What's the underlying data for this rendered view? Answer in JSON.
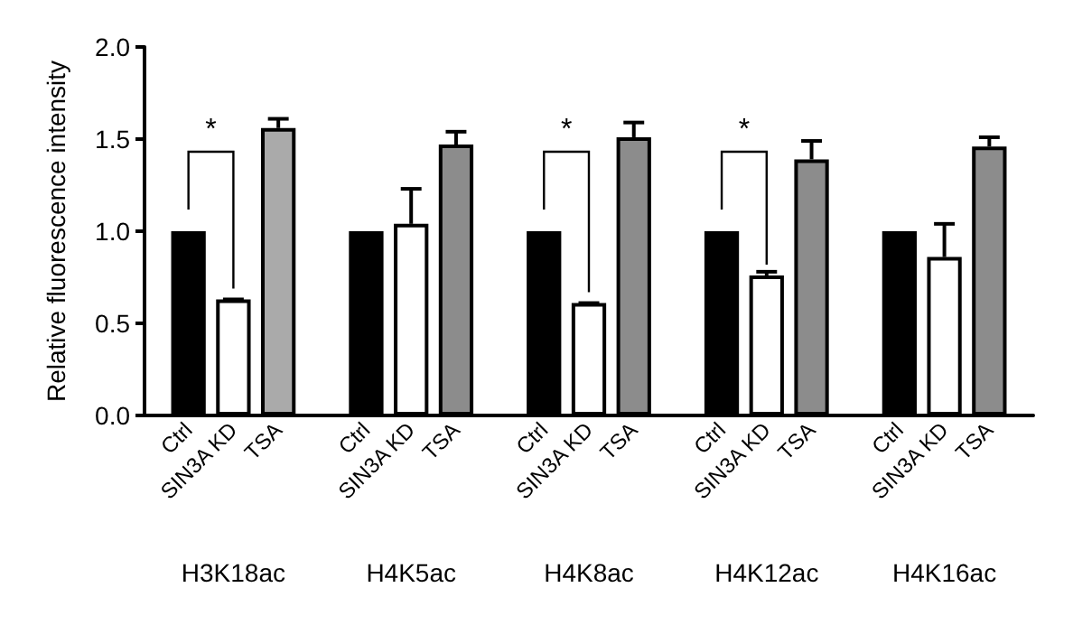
{
  "chart_data": {
    "type": "bar",
    "ylabel": "Relative fluorescence intensity",
    "categories": [
      "H3K18ac",
      "H4K5ac",
      "H4K8ac",
      "H4K12ac",
      "H4K16ac"
    ],
    "series": [
      {
        "name": "Ctrl",
        "color": "#000000",
        "values": [
          1,
          1,
          1,
          1,
          1
        ]
      },
      {
        "name": "SIN3A KD",
        "color": "#ffffff",
        "values": [
          0.63,
          1.04,
          0.61,
          0.76,
          0.86
        ],
        "errors": [
          [
            0.63,
            0.63
          ],
          [
            1.04,
            1.23
          ],
          [
            0.61,
            0.61
          ],
          [
            0.76,
            0.78
          ],
          [
            0.86,
            1.04
          ]
        ]
      },
      {
        "name": "TSA",
        "colors": [
          "#aaaaaa",
          "#8c8c8c",
          "#8c8c8c",
          "#8c8c8c",
          "#8c8c8c"
        ],
        "values": [
          1.56,
          1.47,
          1.51,
          1.39,
          1.46
        ],
        "errors": [
          [
            1.56,
            1.61
          ],
          [
            1.47,
            1.54
          ],
          [
            1.51,
            1.59
          ],
          [
            1.39,
            1.49
          ],
          [
            1.46,
            1.51
          ]
        ]
      }
    ],
    "ylim": [
      0,
      2
    ],
    "yticks": [
      {
        "value": 0,
        "label": "0.0"
      },
      {
        "value": 0.5,
        "label": "0.5"
      },
      {
        "value": 1,
        "label": "1.0"
      },
      {
        "value": 1.5,
        "label": "1.5"
      },
      {
        "value": 2,
        "label": "2.0"
      }
    ],
    "annotations": [
      "*",
      "*",
      "*"
    ],
    "legend": false,
    "grid": false
  }
}
